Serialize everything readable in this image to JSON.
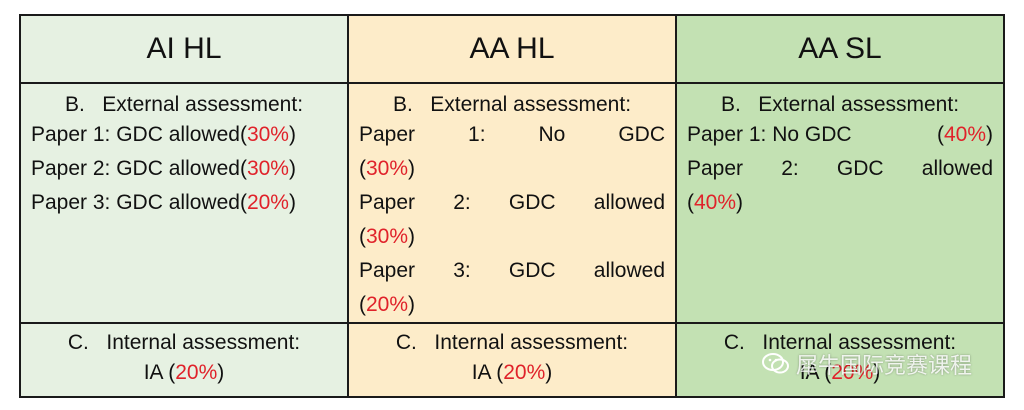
{
  "columns": [
    {
      "header": "AI HL",
      "external_title": "B.   External assessment:",
      "papers": [
        {
          "label": "Paper 1: GDC allowed",
          "pct": "30%"
        },
        {
          "label": "Paper 2: GDC allowed",
          "pct": "30%"
        },
        {
          "label": "Paper 3: GDC allowed",
          "pct": "20%"
        }
      ],
      "internal_title": "C.   Internal assessment:",
      "internal_label": "IA",
      "internal_pct": "20%"
    },
    {
      "header": "AA HL",
      "external_title": "B.   External assessment:",
      "papers": [
        {
          "line1": "Paper   1:   No   GDC",
          "pct": "30%"
        },
        {
          "line1": "Paper   2:   GDC   allowed",
          "pct": "30%"
        },
        {
          "line1": "Paper   3:   GDC   allowed",
          "pct": "20%"
        }
      ],
      "internal_title": "C.   Internal assessment:",
      "internal_label": "IA",
      "internal_pct": "20%"
    },
    {
      "header": "AA SL",
      "external_title": "B.   External assessment:",
      "papers": [
        {
          "label": "Paper 1: No GDC",
          "pct": "40%"
        },
        {
          "line1": "Paper   2:   GDC   allowed",
          "pct": "40%"
        }
      ],
      "internal_title": "C.   Internal assessment:",
      "internal_label": "IA",
      "internal_pct": "20%"
    }
  ],
  "watermark": "犀牛国际竞赛课程",
  "colors": {
    "ai_hl_bg": "#e6f1e2",
    "aa_hl_bg": "#fdecc9",
    "aa_sl_bg": "#c3e1b3",
    "percent_red": "#e0222a"
  }
}
